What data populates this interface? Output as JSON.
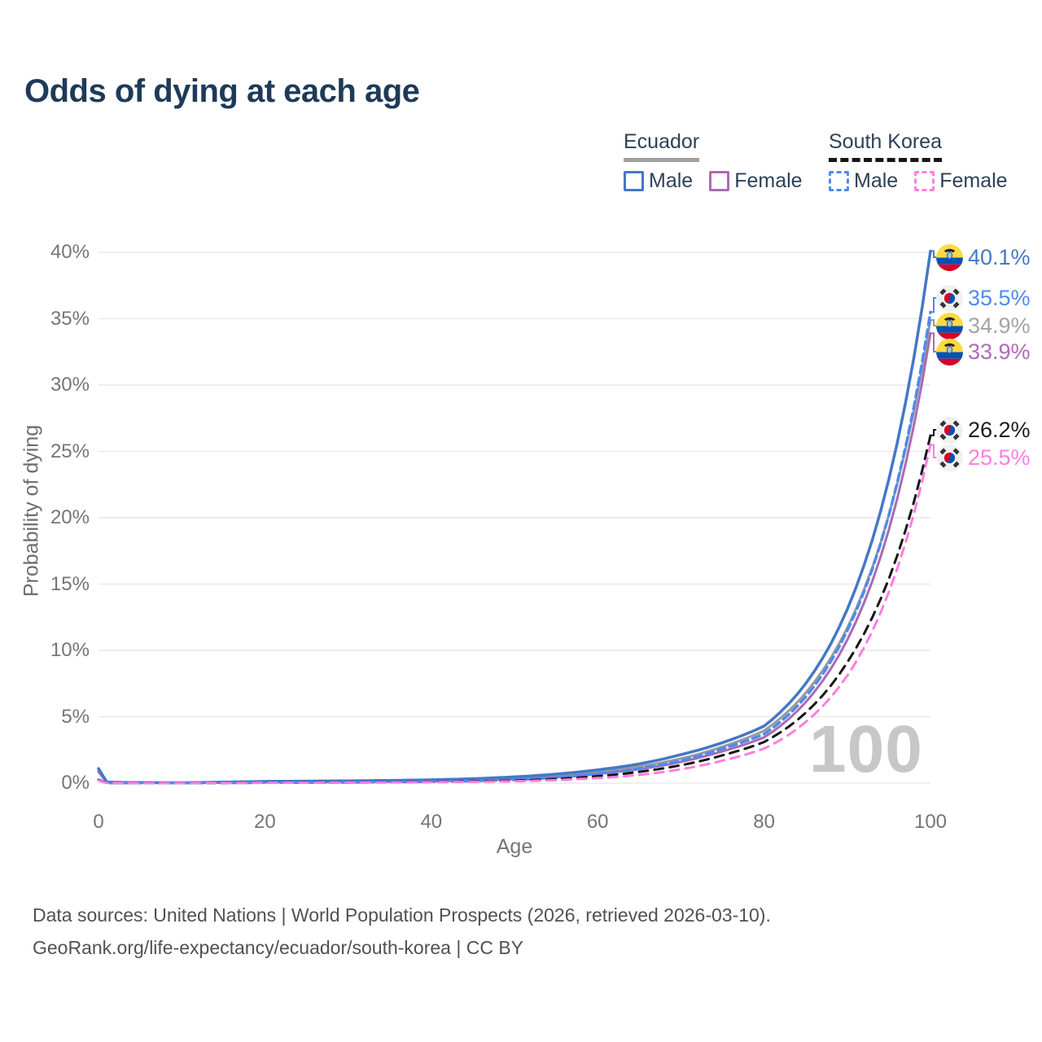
{
  "title": "Odds of dying at each age",
  "legend": {
    "groups": [
      {
        "title": "Ecuador",
        "underline": "solid",
        "underline_color": "#a0a0a0",
        "items": [
          {
            "label": "Male",
            "color": "#4577c6",
            "dash": false
          },
          {
            "label": "Female",
            "color": "#a96cb0",
            "dash": false
          }
        ]
      },
      {
        "title": "South Korea",
        "underline": "dashed",
        "underline_color": "#161616",
        "items": [
          {
            "label": "Male",
            "color": "#4e8af2",
            "dash": true
          },
          {
            "label": "Female",
            "color": "#ff7ddd",
            "dash": true
          }
        ]
      }
    ]
  },
  "axes": {
    "x_label": "Age",
    "y_label": "Probability of dying",
    "x_ticks": [
      0,
      20,
      40,
      60,
      80,
      100
    ],
    "y_ticks_percent": [
      0,
      5,
      10,
      15,
      20,
      25,
      30,
      35,
      40
    ],
    "y_tick_suffix": "%"
  },
  "watermark": "100",
  "footer": {
    "line1": "Data sources: United Nations | World Population Prospects (2026, retrieved 2026-03-10).",
    "line2": "GeoRank.org/life-expectancy/ecuador/south-korea | CC BY"
  },
  "chart_data": {
    "type": "line",
    "title": "Odds of dying at each age",
    "xlabel": "Age",
    "ylabel": "Probability of dying",
    "x_range": [
      0,
      100
    ],
    "y_range_percent": [
      0,
      40
    ],
    "grid": "horizontal",
    "legend_position": "top-right",
    "unit": "%",
    "series": [
      {
        "name": "Ecuador (both sexes)",
        "country": "ecuador",
        "sex": "both",
        "color": "#9a9a9a",
        "style": "solid",
        "width": 3,
        "end_label": "34.9%",
        "end_value": 34.9,
        "label_color": "#a3a3a3",
        "label_center_y": 400,
        "points": [
          [
            0,
            1.0
          ],
          [
            1,
            0.075
          ],
          [
            5,
            0.035
          ],
          [
            10,
            0.025
          ],
          [
            15,
            0.06
          ],
          [
            20,
            0.09
          ],
          [
            25,
            0.1
          ],
          [
            30,
            0.12
          ],
          [
            35,
            0.14
          ],
          [
            40,
            0.19
          ],
          [
            45,
            0.26
          ],
          [
            50,
            0.38
          ],
          [
            55,
            0.55
          ],
          [
            60,
            0.85
          ],
          [
            65,
            1.25
          ],
          [
            70,
            1.85
          ],
          [
            75,
            2.75
          ],
          [
            80,
            3.95
          ],
          [
            85,
            6.8
          ],
          [
            90,
            11.7
          ],
          [
            95,
            20.2
          ],
          [
            100,
            34.9
          ]
        ]
      },
      {
        "name": "Ecuador Female",
        "country": "ecuador",
        "sex": "female",
        "color": "#a96cb0",
        "style": "solid",
        "width": 3,
        "end_label": "33.9%",
        "end_value": 33.9,
        "label_color": "#ad6cb5",
        "label_center_y": 432,
        "points": [
          [
            0,
            0.85
          ],
          [
            1,
            0.065
          ],
          [
            5,
            0.03
          ],
          [
            10,
            0.02
          ],
          [
            15,
            0.04
          ],
          [
            20,
            0.06
          ],
          [
            25,
            0.07
          ],
          [
            30,
            0.09
          ],
          [
            35,
            0.11
          ],
          [
            40,
            0.15
          ],
          [
            45,
            0.21
          ],
          [
            50,
            0.3
          ],
          [
            55,
            0.45
          ],
          [
            60,
            0.7
          ],
          [
            65,
            1.05
          ],
          [
            70,
            1.6
          ],
          [
            75,
            2.4
          ],
          [
            80,
            3.45
          ],
          [
            85,
            6.1
          ],
          [
            90,
            10.8
          ],
          [
            95,
            19.1
          ],
          [
            100,
            33.9
          ]
        ]
      },
      {
        "name": "Ecuador Male",
        "country": "ecuador",
        "sex": "male",
        "color": "#4577c6",
        "style": "solid",
        "width": 3.5,
        "end_label": "40.1%",
        "end_value": 40.1,
        "label_color": "#4579c2",
        "label_center_y": 316,
        "points": [
          [
            0,
            1.1
          ],
          [
            1,
            0.08
          ],
          [
            5,
            0.04
          ],
          [
            10,
            0.03
          ],
          [
            15,
            0.08
          ],
          [
            20,
            0.13
          ],
          [
            25,
            0.15
          ],
          [
            30,
            0.17
          ],
          [
            35,
            0.2
          ],
          [
            40,
            0.25
          ],
          [
            45,
            0.33
          ],
          [
            50,
            0.47
          ],
          [
            55,
            0.68
          ],
          [
            60,
            1.0
          ],
          [
            65,
            1.45
          ],
          [
            70,
            2.15
          ],
          [
            75,
            3.05
          ],
          [
            80,
            4.3
          ],
          [
            85,
            7.5
          ],
          [
            90,
            13.1
          ],
          [
            95,
            22.9
          ],
          [
            100,
            40.1
          ]
        ]
      },
      {
        "name": "South Korea Male",
        "country": "south-korea",
        "sex": "male",
        "color": "#4e8af2",
        "style": "dashed",
        "width": 3.5,
        "dasharray": "9 6",
        "end_label": "35.5%",
        "end_value": 35.5,
        "label_color": "#4e8af2",
        "label_center_y": 366,
        "points": [
          [
            0,
            0.25
          ],
          [
            1,
            0.02
          ],
          [
            5,
            0.012
          ],
          [
            10,
            0.01
          ],
          [
            15,
            0.025
          ],
          [
            20,
            0.04
          ],
          [
            25,
            0.05
          ],
          [
            30,
            0.06
          ],
          [
            35,
            0.08
          ],
          [
            40,
            0.11
          ],
          [
            45,
            0.17
          ],
          [
            50,
            0.25
          ],
          [
            55,
            0.42
          ],
          [
            60,
            0.72
          ],
          [
            65,
            1.1
          ],
          [
            70,
            1.7
          ],
          [
            75,
            2.6
          ],
          [
            80,
            3.7
          ],
          [
            85,
            6.5
          ],
          [
            90,
            11.5
          ],
          [
            95,
            20.2
          ],
          [
            100,
            35.5
          ]
        ]
      },
      {
        "name": "South Korea (both sexes)",
        "country": "south-korea",
        "sex": "both",
        "color": "#161616",
        "style": "dashed",
        "width": 3,
        "dasharray": "11 8",
        "end_label": "26.2%",
        "end_value": 26.2,
        "label_color": "#1c1c1c",
        "label_center_y": 528,
        "points": [
          [
            0,
            0.22
          ],
          [
            1,
            0.018
          ],
          [
            5,
            0.01
          ],
          [
            10,
            0.009
          ],
          [
            15,
            0.02
          ],
          [
            20,
            0.032
          ],
          [
            25,
            0.04
          ],
          [
            30,
            0.05
          ],
          [
            35,
            0.065
          ],
          [
            40,
            0.09
          ],
          [
            45,
            0.13
          ],
          [
            50,
            0.19
          ],
          [
            55,
            0.31
          ],
          [
            60,
            0.52
          ],
          [
            65,
            0.85
          ],
          [
            70,
            1.35
          ],
          [
            75,
            2.1
          ],
          [
            80,
            3.1
          ],
          [
            85,
            5.3
          ],
          [
            90,
            9.1
          ],
          [
            95,
            15.4
          ],
          [
            100,
            26.2
          ]
        ]
      },
      {
        "name": "South Korea Female",
        "country": "south-korea",
        "sex": "female",
        "color": "#ff7ddd",
        "style": "dashed",
        "width": 3,
        "dasharray": "11 8",
        "end_label": "25.5%",
        "end_value": 25.5,
        "label_color": "#ff80dd",
        "label_center_y": 562,
        "points": [
          [
            0,
            0.2
          ],
          [
            1,
            0.015
          ],
          [
            5,
            0.009
          ],
          [
            10,
            0.008
          ],
          [
            15,
            0.015
          ],
          [
            20,
            0.025
          ],
          [
            25,
            0.032
          ],
          [
            30,
            0.04
          ],
          [
            35,
            0.05
          ],
          [
            40,
            0.07
          ],
          [
            45,
            0.1
          ],
          [
            50,
            0.14
          ],
          [
            55,
            0.23
          ],
          [
            60,
            0.38
          ],
          [
            65,
            0.62
          ],
          [
            70,
            1.05
          ],
          [
            75,
            1.7
          ],
          [
            80,
            2.6
          ],
          [
            85,
            4.6
          ],
          [
            90,
            8.1
          ],
          [
            95,
            14.4
          ],
          [
            100,
            25.5
          ]
        ]
      }
    ]
  }
}
